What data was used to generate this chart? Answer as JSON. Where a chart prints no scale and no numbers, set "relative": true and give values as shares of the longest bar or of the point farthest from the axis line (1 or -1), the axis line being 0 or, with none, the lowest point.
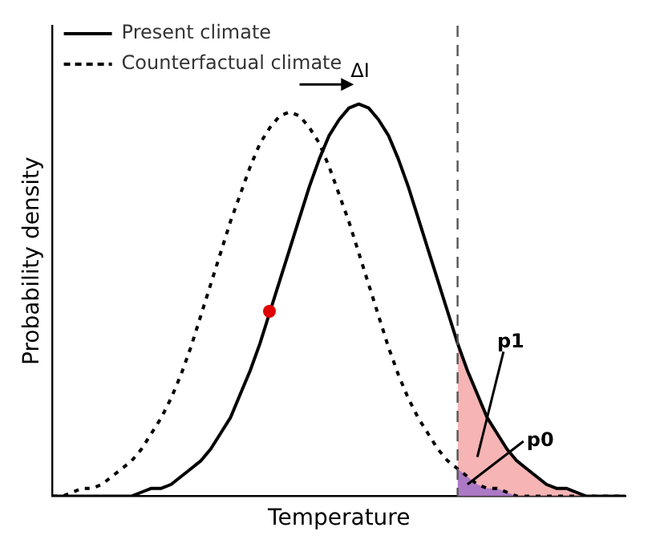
{
  "chart_data": {
    "type": "line",
    "relative": true,
    "xlabel": "Temperature",
    "ylabel": "Probability density",
    "legend": "top left",
    "marker": "none",
    "grid": false,
    "tick_labels": false,
    "categories": [
      null,
      null,
      null,
      null,
      null,
      null,
      null,
      null,
      null,
      null,
      null,
      null,
      null,
      null,
      null,
      null,
      null,
      null,
      null,
      null,
      null,
      null,
      null,
      null,
      null,
      null,
      null,
      null,
      null,
      null,
      null,
      null,
      null,
      null,
      null,
      null,
      null,
      null,
      null,
      null,
      null,
      null,
      null,
      null,
      null,
      null,
      null,
      null,
      null,
      null,
      null,
      null,
      null,
      null,
      null,
      null,
      null,
      null,
      null
    ],
    "series": [
      {
        "type": "area",
        "color": "#f4a3a3",
        "values": [
          null,
          null,
          null,
          null,
          null,
          null,
          null,
          null,
          null,
          null,
          null,
          null,
          null,
          null,
          null,
          null,
          null,
          null,
          null,
          null,
          null,
          null,
          null,
          null,
          null,
          null,
          null,
          null,
          null,
          null,
          null,
          null,
          null,
          null,
          null,
          null,
          null,
          null,
          null,
          null,
          null,
          0.39,
          0.32,
          0.26,
          0.2,
          0.16,
          0.12,
          0.09,
          0.07,
          0.05,
          0.03,
          0.02,
          0.02,
          0.01,
          0,
          0,
          0,
          0,
          0
        ]
      },
      {
        "type": "area",
        "color": "#9a6cc9",
        "values": [
          null,
          null,
          null,
          null,
          null,
          null,
          null,
          null,
          null,
          null,
          null,
          null,
          null,
          null,
          null,
          null,
          null,
          null,
          null,
          null,
          null,
          null,
          null,
          null,
          null,
          null,
          null,
          null,
          null,
          null,
          null,
          null,
          null,
          null,
          null,
          null,
          null,
          null,
          null,
          null,
          null,
          0.07,
          0.05,
          0.03,
          0.02,
          0.02,
          0.01,
          0,
          0,
          0,
          0,
          0,
          0,
          0,
          0,
          0,
          0,
          0,
          0
        ]
      },
      {
        "name": "Present climate",
        "color": "#000000",
        "line_style": "solid",
        "values": [
          0,
          0,
          0,
          0,
          0,
          0,
          0,
          0,
          0,
          0.01,
          0.02,
          0.02,
          0.03,
          0.05,
          0.07,
          0.09,
          0.12,
          0.16,
          0.2,
          0.26,
          0.32,
          0.39,
          0.47,
          0.55,
          0.63,
          0.71,
          0.79,
          0.86,
          0.92,
          0.96,
          0.99,
          1,
          0.99,
          0.96,
          0.92,
          0.86,
          0.79,
          0.71,
          0.63,
          0.55,
          0.47,
          0.39,
          0.32,
          0.26,
          0.2,
          0.16,
          0.12,
          0.09,
          0.07,
          0.05,
          0.03,
          0.02,
          0.02,
          0.01,
          0,
          0,
          0,
          0,
          0
        ]
      },
      {
        "name": "Counterfactual climate",
        "color": "#000000",
        "line_style": "dotted",
        "values": [
          0,
          0,
          0.01,
          0.02,
          0.02,
          0.03,
          0.05,
          0.07,
          0.09,
          0.12,
          0.16,
          0.2,
          0.25,
          0.31,
          0.38,
          0.46,
          0.54,
          0.62,
          0.7,
          0.77,
          0.84,
          0.9,
          0.94,
          0.97,
          0.98,
          0.97,
          0.94,
          0.9,
          0.84,
          0.77,
          0.7,
          0.62,
          0.54,
          0.46,
          0.38,
          0.31,
          0.25,
          0.2,
          0.16,
          0.12,
          0.09,
          0.07,
          0.05,
          0.03,
          0.02,
          0.02,
          0.01,
          0,
          0,
          0,
          0,
          0,
          0,
          0,
          0,
          0,
          0,
          0,
          0
        ]
      }
    ],
    "annotations": [
      "ΔI",
      "p1",
      "p0"
    ]
  }
}
